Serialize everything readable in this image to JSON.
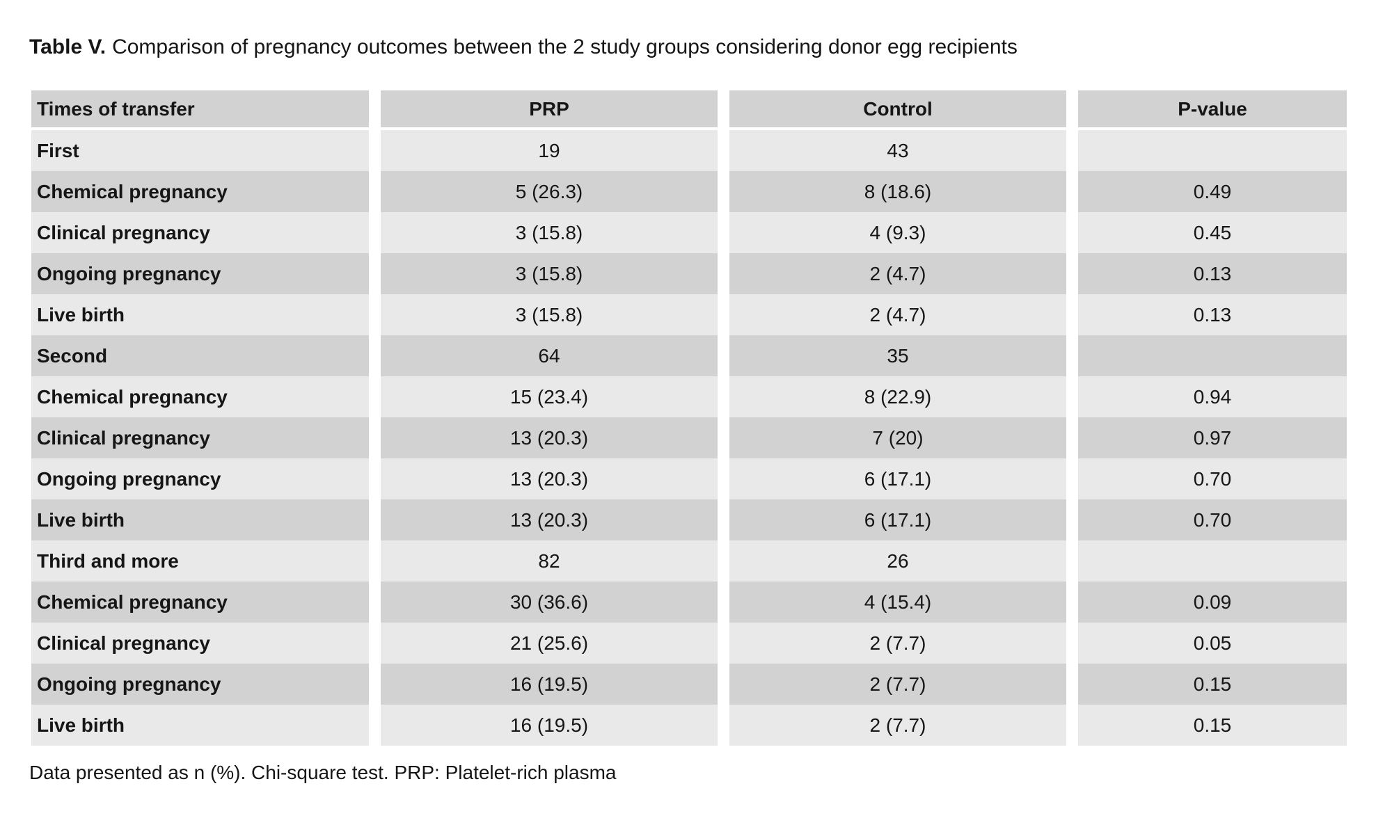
{
  "title": {
    "label": "Table V.",
    "caption": "Comparison of pregnancy outcomes between the 2 study groups considering donor egg recipients"
  },
  "table": {
    "columns": [
      "Times of transfer",
      "PRP",
      "Control",
      "P-value"
    ],
    "rows": [
      {
        "label": "First",
        "prp": "19",
        "control": "43",
        "p": ""
      },
      {
        "label": "Chemical pregnancy",
        "prp": "5 (26.3)",
        "control": "8 (18.6)",
        "p": "0.49"
      },
      {
        "label": "Clinical pregnancy",
        "prp": "3 (15.8)",
        "control": "4 (9.3)",
        "p": "0.45"
      },
      {
        "label": "Ongoing pregnancy",
        "prp": "3 (15.8)",
        "control": "2 (4.7)",
        "p": "0.13"
      },
      {
        "label": "Live birth",
        "prp": "3 (15.8)",
        "control": "2 (4.7)",
        "p": "0.13"
      },
      {
        "label": "Second",
        "prp": "64",
        "control": "35",
        "p": ""
      },
      {
        "label": "Chemical pregnancy",
        "prp": "15 (23.4)",
        "control": "8 (22.9)",
        "p": "0.94"
      },
      {
        "label": "Clinical pregnancy",
        "prp": "13 (20.3)",
        "control": "7 (20)",
        "p": "0.97"
      },
      {
        "label": "Ongoing pregnancy",
        "prp": "13 (20.3)",
        "control": "6 (17.1)",
        "p": "0.70"
      },
      {
        "label": "Live birth",
        "prp": "13 (20.3)",
        "control": "6 (17.1)",
        "p": "0.70"
      },
      {
        "label": "Third and more",
        "prp": "82",
        "control": "26",
        "p": ""
      },
      {
        "label": "Chemical pregnancy",
        "prp": "30 (36.6)",
        "control": "4 (15.4)",
        "p": "0.09"
      },
      {
        "label": "Clinical pregnancy",
        "prp": "21 (25.6)",
        "control": "2 (7.7)",
        "p": "0.05"
      },
      {
        "label": "Ongoing pregnancy",
        "prp": "16 (19.5)",
        "control": "2 (7.7)",
        "p": "0.15"
      },
      {
        "label": "Live birth",
        "prp": "16 (19.5)",
        "control": "2 (7.7)",
        "p": "0.15"
      }
    ]
  },
  "footnote": "Data presented as n (%). Chi-square test. PRP: Platelet-rich plasma",
  "colors": {
    "background": "#ffffff",
    "header_bg": "#d2d2d2",
    "row_dark": "#d2d2d2",
    "row_light": "#e9e9e9",
    "text": "#161616"
  }
}
